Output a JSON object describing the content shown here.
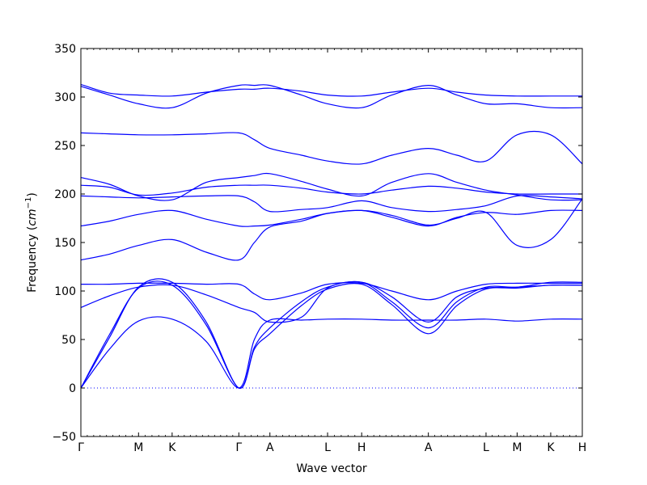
{
  "chart_data": {
    "type": "line",
    "title": "",
    "xlabel": "Wave vector",
    "ylabel": "Frequency ($cm^{-1}$)",
    "ylabel_parts": {
      "base": "Frequency (",
      "unit": "cm",
      "exponent": "−1",
      "close": ")"
    },
    "ylim": [
      -50,
      350
    ],
    "yticks": [
      -50,
      0,
      50,
      100,
      150,
      200,
      250,
      300,
      350
    ],
    "ytick_labels": [
      "−50",
      "0",
      "50",
      "100",
      "150",
      "200",
      "250",
      "300",
      "350"
    ],
    "grid": false,
    "line_color": "#0000ff",
    "zero_line": {
      "y": 0,
      "style": "dotted",
      "color": "#0000ff"
    },
    "kpoints": [
      {
        "label": "Γ",
        "x": 0
      },
      {
        "label": "M",
        "x": 0.115
      },
      {
        "label": "K",
        "x": 0.182
      },
      {
        "label": "Γ",
        "x": 0.315
      },
      {
        "label": "A",
        "x": 0.377
      },
      {
        "label": "L",
        "x": 0.492
      },
      {
        "label": "H",
        "x": 0.56
      },
      {
        "label": "A",
        "x": 0.693
      },
      {
        "label": "L",
        "x": 0.808
      },
      {
        "label": "M",
        "x": 0.87
      },
      {
        "label": "K",
        "x": 0.937
      },
      {
        "label": "H",
        "x": 1.0
      }
    ],
    "series": [
      {
        "x": [
          0,
          0.057,
          0.115,
          0.182,
          0.25,
          0.315,
          0.346,
          0.377,
          0.44,
          0.492,
          0.56,
          0.62,
          0.693,
          0.75,
          0.808,
          0.87,
          0.937,
          1.0
        ],
        "values": [
          0,
          55,
          103,
          106,
          65,
          0,
          40,
          56,
          85,
          102,
          107,
          86,
          56,
          85,
          102,
          103,
          106,
          106
        ]
      },
      {
        "x": [
          0,
          0.057,
          0.115,
          0.182,
          0.25,
          0.315,
          0.346,
          0.377,
          0.44,
          0.492,
          0.56,
          0.62,
          0.693,
          0.75,
          0.808,
          0.87,
          0.937,
          1.0
        ],
        "values": [
          0,
          52,
          104,
          109,
          68,
          0,
          42,
          62,
          89,
          104,
          109,
          89,
          62,
          89,
          104,
          104,
          109,
          109
        ]
      },
      {
        "x": [
          0,
          0.057,
          0.115,
          0.182,
          0.25,
          0.315,
          0.346,
          0.377,
          0.44,
          0.492,
          0.56,
          0.62,
          0.693,
          0.75,
          0.808,
          0.87,
          0.937,
          1.0
        ],
        "values": [
          0,
          40,
          69,
          71,
          48,
          0,
          50,
          70,
          70,
          71,
          71,
          70,
          70,
          70,
          71,
          69,
          71,
          71
        ]
      },
      {
        "x": [
          0,
          0.057,
          0.115,
          0.182,
          0.25,
          0.315,
          0.346,
          0.377,
          0.44,
          0.492,
          0.56,
          0.62,
          0.693,
          0.75,
          0.808,
          0.87,
          0.937,
          1.0
        ],
        "values": [
          83,
          95,
          104,
          106,
          96,
          83,
          78,
          68,
          73,
          103,
          109,
          94,
          68,
          94,
          103,
          104,
          106,
          106
        ]
      },
      {
        "x": [
          0,
          0.057,
          0.115,
          0.182,
          0.25,
          0.315,
          0.346,
          0.377,
          0.44,
          0.492,
          0.56,
          0.62,
          0.693,
          0.75,
          0.808,
          0.87,
          0.937,
          1.0
        ],
        "values": [
          107,
          107,
          108,
          108,
          107,
          107,
          97,
          91,
          98,
          107,
          108,
          100,
          91,
          100,
          107,
          108,
          108,
          108
        ]
      },
      {
        "x": [
          0,
          0.057,
          0.115,
          0.182,
          0.25,
          0.315,
          0.346,
          0.377,
          0.44,
          0.492,
          0.56,
          0.62,
          0.693,
          0.75,
          0.808,
          0.87,
          0.937,
          1.0
        ],
        "values": [
          132,
          138,
          147,
          153,
          140,
          132,
          150,
          166,
          172,
          180,
          183,
          178,
          168,
          175,
          181,
          147,
          153,
          195
        ]
      },
      {
        "x": [
          0,
          0.057,
          0.115,
          0.182,
          0.25,
          0.315,
          0.346,
          0.377,
          0.44,
          0.492,
          0.56,
          0.62,
          0.693,
          0.75,
          0.808,
          0.87,
          0.937,
          1.0
        ],
        "values": [
          167,
          172,
          179,
          183,
          174,
          167,
          167,
          168,
          174,
          180,
          183,
          176,
          167,
          176,
          181,
          179,
          183,
          183
        ]
      },
      {
        "x": [
          0,
          0.057,
          0.115,
          0.182,
          0.25,
          0.315,
          0.346,
          0.377,
          0.44,
          0.492,
          0.56,
          0.62,
          0.693,
          0.75,
          0.808,
          0.87,
          0.937,
          1.0
        ],
        "values": [
          198,
          197,
          196,
          197,
          198,
          198,
          192,
          182,
          184,
          186,
          193,
          186,
          182,
          184,
          188,
          198,
          197,
          195
        ]
      },
      {
        "x": [
          0,
          0.057,
          0.115,
          0.182,
          0.25,
          0.315,
          0.346,
          0.377,
          0.44,
          0.492,
          0.56,
          0.62,
          0.693,
          0.75,
          0.808,
          0.87,
          0.937,
          1.0
        ],
        "values": [
          209,
          207,
          199,
          201,
          207,
          209,
          209,
          209,
          206,
          202,
          200,
          204,
          208,
          206,
          202,
          200,
          200,
          200
        ]
      },
      {
        "x": [
          0,
          0.057,
          0.115,
          0.182,
          0.25,
          0.315,
          0.346,
          0.377,
          0.44,
          0.492,
          0.56,
          0.62,
          0.693,
          0.75,
          0.808,
          0.87,
          0.937,
          1.0
        ],
        "values": [
          217,
          210,
          198,
          194,
          212,
          217,
          219,
          221,
          213,
          205,
          198,
          212,
          221,
          212,
          204,
          199,
          194,
          194
        ]
      },
      {
        "x": [
          0,
          0.057,
          0.115,
          0.182,
          0.25,
          0.315,
          0.346,
          0.377,
          0.44,
          0.492,
          0.56,
          0.62,
          0.693,
          0.75,
          0.808,
          0.87,
          0.937,
          1.0
        ],
        "values": [
          263,
          262,
          261,
          261,
          262,
          263,
          256,
          247,
          240,
          234,
          231,
          240,
          247,
          240,
          234,
          261,
          261,
          231
        ]
      },
      {
        "x": [
          0,
          0.057,
          0.115,
          0.182,
          0.25,
          0.315,
          0.346,
          0.377,
          0.44,
          0.492,
          0.56,
          0.62,
          0.693,
          0.75,
          0.808,
          0.87,
          0.937,
          1.0
        ],
        "values": [
          311,
          302,
          293,
          289,
          304,
          312,
          312,
          312,
          302,
          293,
          289,
          302,
          312,
          302,
          293,
          293,
          289,
          289
        ]
      },
      {
        "x": [
          0,
          0.057,
          0.115,
          0.182,
          0.25,
          0.315,
          0.346,
          0.377,
          0.44,
          0.492,
          0.56,
          0.62,
          0.693,
          0.75,
          0.808,
          0.87,
          0.937,
          1.0
        ],
        "values": [
          313,
          304,
          302,
          301,
          305,
          308,
          308,
          309,
          306,
          302,
          301,
          305,
          309,
          305,
          302,
          301,
          301,
          301
        ]
      }
    ]
  }
}
